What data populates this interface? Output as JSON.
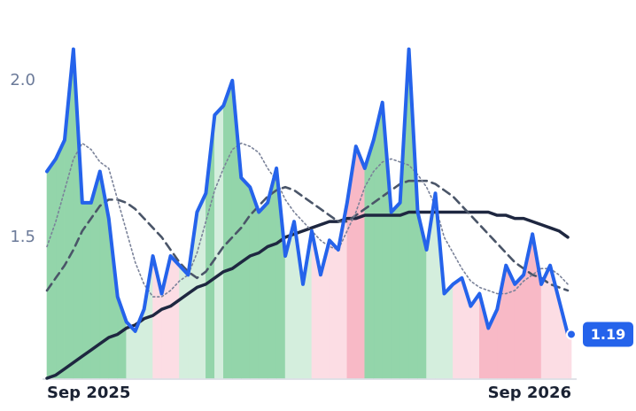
{
  "chart_data": {
    "type": "line",
    "categories": [
      "Sep 2025",
      null,
      null,
      null,
      null,
      null,
      null,
      null,
      null,
      null,
      null,
      null,
      null,
      null,
      null,
      null,
      null,
      null,
      null,
      null,
      null,
      null,
      null,
      null,
      null,
      null,
      null,
      null,
      null,
      null,
      null,
      null,
      null,
      null,
      null,
      null,
      null,
      null,
      null,
      null,
      null,
      null,
      null,
      null,
      null,
      null,
      null,
      null,
      null,
      null,
      null,
      null,
      null,
      null,
      null,
      null,
      null,
      null,
      null,
      "Sep 2026"
    ],
    "ylim": [
      1.05,
      2.25
    ],
    "yticks": [
      {
        "value": 1.5,
        "label": "1.5"
      },
      {
        "value": 2,
        "label": "2.0"
      }
    ],
    "series": [
      {
        "color": "#2563eb",
        "style": "solid",
        "values": [
          1.71,
          1.75,
          1.81,
          2.1,
          1.61,
          1.61,
          1.71,
          1.56,
          1.31,
          1.23,
          1.2,
          1.27,
          1.44,
          1.32,
          1.44,
          1.41,
          1.38,
          1.58,
          1.64,
          1.89,
          1.92,
          2.0,
          1.69,
          1.66,
          1.58,
          1.61,
          1.72,
          1.44,
          1.55,
          1.35,
          1.52,
          1.38,
          1.49,
          1.46,
          1.61,
          1.79,
          1.72,
          1.81,
          1.93,
          1.58,
          1.61,
          2.1,
          1.58,
          1.46,
          1.64,
          1.32,
          1.35,
          1.37,
          1.28,
          1.32,
          1.21,
          1.27,
          1.41,
          1.35,
          1.38,
          1.51,
          1.35,
          1.41,
          1.3,
          1.19
        ]
      },
      {
        "color": "#7a8299",
        "style": "dotted",
        "values": [
          1.47,
          1.55,
          1.65,
          1.75,
          1.8,
          1.78,
          1.74,
          1.72,
          1.62,
          1.52,
          1.42,
          1.35,
          1.31,
          1.31,
          1.33,
          1.36,
          1.38,
          1.45,
          1.55,
          1.65,
          1.72,
          1.78,
          1.8,
          1.79,
          1.77,
          1.72,
          1.68,
          1.62,
          1.58,
          1.55,
          1.52,
          1.49,
          1.47,
          1.46,
          1.52,
          1.58,
          1.66,
          1.71,
          1.74,
          1.75,
          1.74,
          1.73,
          1.7,
          1.66,
          1.6,
          1.5,
          1.45,
          1.4,
          1.36,
          1.34,
          1.33,
          1.32,
          1.32,
          1.33,
          1.36,
          1.38,
          1.4,
          1.4,
          1.38,
          1.35
        ]
      },
      {
        "color": "#4a5568",
        "style": "dashed",
        "values": [
          1.33,
          1.37,
          1.41,
          1.46,
          1.52,
          1.56,
          1.6,
          1.62,
          1.62,
          1.61,
          1.59,
          1.56,
          1.53,
          1.5,
          1.46,
          1.42,
          1.39,
          1.37,
          1.39,
          1.43,
          1.47,
          1.5,
          1.53,
          1.57,
          1.6,
          1.63,
          1.65,
          1.66,
          1.65,
          1.63,
          1.61,
          1.59,
          1.57,
          1.55,
          1.55,
          1.57,
          1.59,
          1.61,
          1.63,
          1.65,
          1.67,
          1.68,
          1.68,
          1.68,
          1.67,
          1.65,
          1.63,
          1.6,
          1.57,
          1.54,
          1.51,
          1.48,
          1.45,
          1.42,
          1.4,
          1.38,
          1.37,
          1.35,
          1.34,
          1.33
        ]
      },
      {
        "color": "#1e2740",
        "style": "solid",
        "values": [
          1.05,
          1.06,
          1.08,
          1.1,
          1.12,
          1.14,
          1.16,
          1.18,
          1.19,
          1.21,
          1.22,
          1.24,
          1.25,
          1.27,
          1.28,
          1.3,
          1.32,
          1.34,
          1.35,
          1.37,
          1.39,
          1.4,
          1.42,
          1.44,
          1.45,
          1.47,
          1.48,
          1.5,
          1.51,
          1.52,
          1.53,
          1.54,
          1.55,
          1.55,
          1.56,
          1.56,
          1.57,
          1.57,
          1.57,
          1.57,
          1.57,
          1.58,
          1.58,
          1.58,
          1.58,
          1.58,
          1.58,
          1.58,
          1.58,
          1.58,
          1.58,
          1.57,
          1.57,
          1.56,
          1.56,
          1.55,
          1.54,
          1.53,
          1.52,
          1.5
        ]
      }
    ],
    "fill_colors": [
      "#93d5aa",
      "#93d5aa",
      "#93d5aa",
      "#93d5aa",
      "#93d5aa",
      "#93d5aa",
      "#93d5aa",
      "#93d5aa",
      "#93d5aa",
      "#d4eedd",
      "#d4eedd",
      "#d4eedd",
      "#fcdde4",
      "#fcdde4",
      "#fcdde4",
      "#d4eedd",
      "#d4eedd",
      "#d4eedd",
      "#93d5aa",
      "#d4eedd",
      "#93d5aa",
      "#93d5aa",
      "#93d5aa",
      "#93d5aa",
      "#93d5aa",
      "#93d5aa",
      "#93d5aa",
      "#d4eedd",
      "#d4eedd",
      "#d4eedd",
      "#fcdde4",
      "#fcdde4",
      "#fcdde4",
      "#fcdde4",
      "#f8b9c6",
      "#f8b9c6",
      "#93d5aa",
      "#93d5aa",
      "#93d5aa",
      "#93d5aa",
      "#93d5aa",
      "#93d5aa",
      "#93d5aa",
      "#d4eedd",
      "#d4eedd",
      "#d4eedd",
      "#fcdde4",
      "#fcdde4",
      "#fcdde4",
      "#f8b9c6",
      "#f8b9c6",
      "#f8b9c6",
      "#f8b9c6",
      "#f8b9c6",
      "#f8b9c6",
      "#f8b9c6",
      "#fcdde4",
      "#fcdde4",
      "#fcdde4",
      "#fcdde4"
    ],
    "badge_color": "#2563eb"
  }
}
